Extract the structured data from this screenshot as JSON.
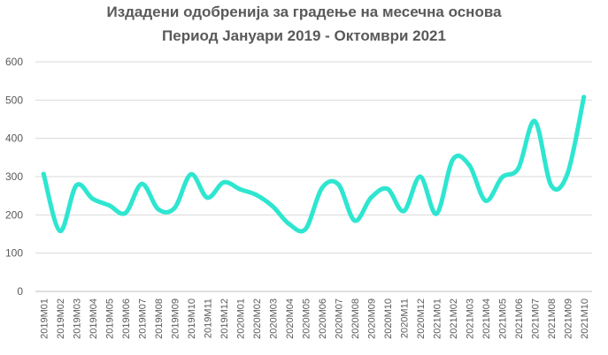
{
  "chart_data": {
    "type": "line",
    "title": [
      "Издадени одобренија за градење на месечна основа",
      "Период Јануари 2019 - Октомври 2021"
    ],
    "xlabel": "",
    "ylabel": "",
    "ylim": [
      0,
      600
    ],
    "yticks": [
      "0",
      "100",
      "200",
      "300",
      "400",
      "500",
      "600"
    ],
    "grid": true,
    "smooth": true,
    "color": "#2EE6D0",
    "categories": [
      "2019M01",
      "2019M02",
      "2019M03",
      "2019M04",
      "2019M05",
      "2019M06",
      "2019M07",
      "2019M08",
      "2019M09",
      "2019M10",
      "2019M11",
      "2019M12",
      "2020M01",
      "2020M02",
      "2020M03",
      "2020M04",
      "2020M05",
      "2020M06",
      "2020M07",
      "2020M08",
      "2020M09",
      "2020M10",
      "2020M11",
      "2020M12",
      "2021M01",
      "2021M02",
      "2021M03",
      "2021M04",
      "2021M05",
      "2021M06",
      "2021M07",
      "2021M08",
      "2021M09",
      "2021M10"
    ],
    "values": [
      307,
      158,
      277,
      242,
      225,
      205,
      281,
      215,
      218,
      306,
      245,
      285,
      267,
      252,
      222,
      176,
      163,
      270,
      280,
      185,
      245,
      268,
      210,
      300,
      203,
      345,
      330,
      237,
      298,
      322,
      445,
      277,
      308,
      508
    ]
  }
}
